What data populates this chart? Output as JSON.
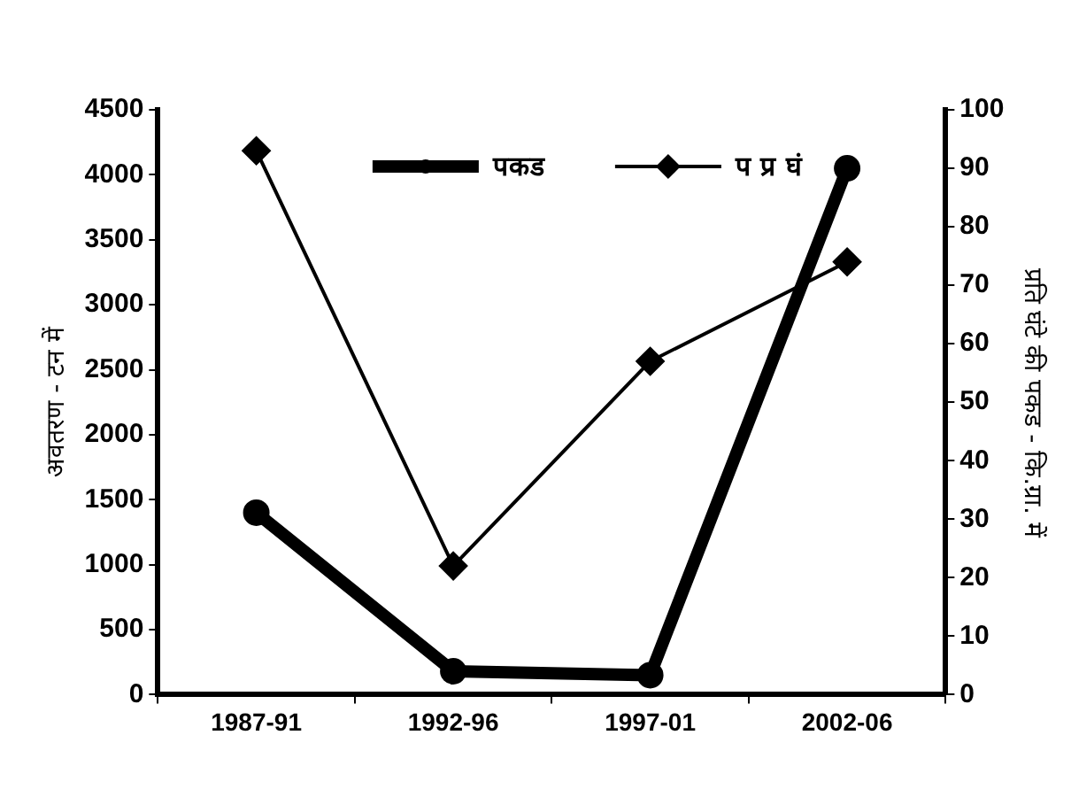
{
  "chart_data": {
    "type": "line",
    "categories": [
      "1987-91",
      "1992-96",
      "1997-01",
      "2002-06"
    ],
    "series": [
      {
        "name": "पकड",
        "color": "#000000",
        "values": [
          1400,
          180,
          150,
          4050
        ],
        "marker": "circle"
      },
      {
        "name": "प प्र घं",
        "color": "#000000",
        "values": [
          93,
          22,
          57,
          74
        ],
        "marker": "diamond",
        "axis": "y2"
      }
    ],
    "ylabel": "अवतरण - टन में",
    "y2label": "प्रति घंटे की पकड - कि.ग्रा. में",
    "ylim": [
      0,
      4500
    ],
    "yticks": [
      0,
      500,
      1000,
      1500,
      2000,
      2500,
      3000,
      3500,
      4000,
      4500
    ],
    "y2lim": [
      0,
      100
    ],
    "y2ticks": [
      0,
      10,
      20,
      30,
      40,
      50,
      60,
      70,
      80,
      90,
      100
    ],
    "grid": false,
    "legend": "top"
  }
}
